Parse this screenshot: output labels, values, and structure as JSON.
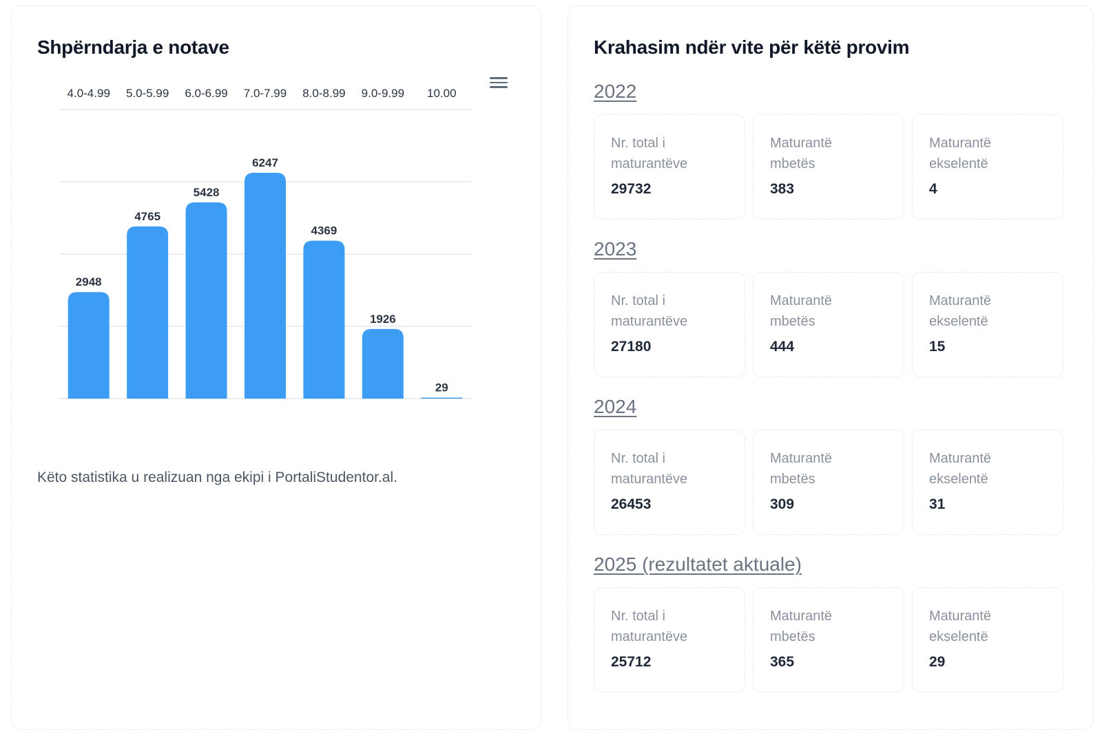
{
  "left_panel": {
    "title": "Shpërndarja e notave",
    "menu_icon": "hamburger-menu-icon",
    "note": "Këto statistika u realizuan nga ekipi i PortaliStudentor.al."
  },
  "chart_data": {
    "type": "bar",
    "categories": [
      "4.0-4.99",
      "5.0-5.99",
      "6.0-6.99",
      "7.0-7.99",
      "8.0-8.99",
      "9.0-9.99",
      "10.00"
    ],
    "values": [
      2948,
      4765,
      5428,
      6247,
      4369,
      1926,
      29
    ],
    "ylim": [
      0,
      8000
    ],
    "grid": true,
    "category_axis_position": "top",
    "data_labels": true,
    "bar_color": "#3d9df5",
    "label_color": "#2b3441"
  },
  "right_panel": {
    "title": "Krahasim ndër vite për këtë provim",
    "years": [
      {
        "label": "2022",
        "stats": [
          {
            "label": "Nr. total i maturantëve",
            "value": "29732"
          },
          {
            "label": "Maturantë mbetës",
            "value": "383"
          },
          {
            "label": "Maturantë ekselentë",
            "value": "4"
          }
        ]
      },
      {
        "label": "2023",
        "stats": [
          {
            "label": "Nr. total i maturantëve",
            "value": "27180"
          },
          {
            "label": "Maturantë mbetës",
            "value": "444"
          },
          {
            "label": "Maturantë ekselentë",
            "value": "15"
          }
        ]
      },
      {
        "label": "2024",
        "stats": [
          {
            "label": "Nr. total i maturantëve",
            "value": "26453"
          },
          {
            "label": "Maturantë mbetës",
            "value": "309"
          },
          {
            "label": "Maturantë ekselentë",
            "value": "31"
          }
        ]
      },
      {
        "label": "2025 (rezultatet aktuale)",
        "stats": [
          {
            "label": "Nr. total i maturantëve",
            "value": "25712"
          },
          {
            "label": "Maturantë mbetës",
            "value": "365"
          },
          {
            "label": "Maturantë ekselentë",
            "value": "29"
          }
        ]
      }
    ]
  }
}
